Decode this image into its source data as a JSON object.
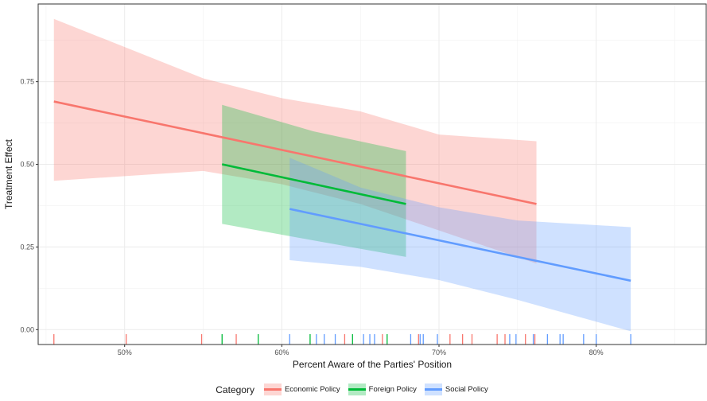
{
  "chart_data": {
    "type": "line",
    "xlabel": "Percent Aware of the Parties' Position",
    "ylabel": "Treatment Effect",
    "xlim": [
      0.445,
      0.87
    ],
    "ylim": [
      -0.045,
      0.985
    ],
    "x_ticks": [
      0.5,
      0.6,
      0.7,
      0.8
    ],
    "x_tick_labels": [
      "50%",
      "60%",
      "70%",
      "80%"
    ],
    "y_ticks": [
      0.0,
      0.25,
      0.5,
      0.75
    ],
    "y_tick_labels": [
      "0.00",
      "0.25",
      "0.50",
      "0.75"
    ],
    "grid": true,
    "legend_position": "bottom",
    "legend_title": "Category",
    "series": [
      {
        "name": "Economic Policy",
        "color": "#F8766D",
        "line": {
          "x": [
            0.455,
            0.762
          ],
          "y": [
            0.69,
            0.38
          ]
        },
        "ribbon": {
          "x": [
            0.455,
            0.55,
            0.6,
            0.65,
            0.7,
            0.762
          ],
          "upper": [
            0.94,
            0.76,
            0.7,
            0.66,
            0.59,
            0.57
          ],
          "lower": [
            0.45,
            0.48,
            0.44,
            0.38,
            0.3,
            0.2
          ]
        },
        "rug": [
          0.455,
          0.501,
          0.549,
          0.571,
          0.64,
          0.664,
          0.687,
          0.707,
          0.715,
          0.721,
          0.737,
          0.742,
          0.755,
          0.761
        ]
      },
      {
        "name": "Foreign Policy",
        "color": "#00BA38",
        "line": {
          "x": [
            0.562,
            0.679
          ],
          "y": [
            0.5,
            0.38
          ]
        },
        "ribbon": {
          "x": [
            0.562,
            0.62,
            0.679
          ],
          "upper": [
            0.68,
            0.6,
            0.54
          ],
          "lower": [
            0.32,
            0.27,
            0.22
          ]
        },
        "rug": [
          0.562,
          0.585,
          0.618,
          0.645,
          0.667
        ]
      },
      {
        "name": "Social Policy",
        "color": "#619CFF",
        "line": {
          "x": [
            0.605,
            0.822
          ],
          "y": [
            0.365,
            0.148
          ]
        },
        "ribbon": {
          "x": [
            0.605,
            0.65,
            0.7,
            0.75,
            0.822
          ],
          "upper": [
            0.52,
            0.43,
            0.37,
            0.33,
            0.31
          ],
          "lower": [
            0.21,
            0.19,
            0.15,
            0.09,
            -0.005
          ]
        },
        "rug": [
          0.605,
          0.622,
          0.627,
          0.634,
          0.652,
          0.656,
          0.659,
          0.682,
          0.688,
          0.69,
          0.699,
          0.745,
          0.749,
          0.76,
          0.769,
          0.777,
          0.779,
          0.792,
          0.8,
          0.822
        ]
      }
    ]
  }
}
